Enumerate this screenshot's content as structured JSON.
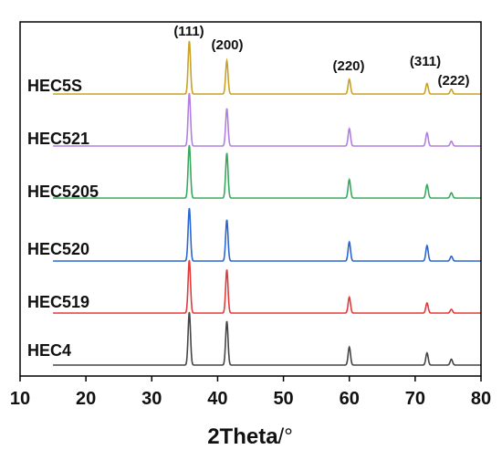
{
  "chart_data": {
    "type": "line",
    "xlabel_main": "2Theta",
    "xlabel_unit": "/°",
    "xlim": [
      10,
      80
    ],
    "ylabel": "",
    "grid": false,
    "legend": "labels above each curve, left side",
    "x_ticks": [
      "10",
      "20",
      "30",
      "40",
      "50",
      "60",
      "70",
      "80"
    ],
    "peaks": [
      {
        "label": "(111)",
        "x": 35.7
      },
      {
        "label": "(200)",
        "x": 41.4
      },
      {
        "label": "(220)",
        "x": 60.0
      },
      {
        "label": "(311)",
        "x": 71.8
      },
      {
        "label": "(222)",
        "x": 75.5
      }
    ],
    "series": [
      {
        "name": "HEC5S",
        "color": "#c9a227",
        "intensities": [
          1.0,
          0.63,
          0.28,
          0.2,
          0.09
        ]
      },
      {
        "name": "HEC521",
        "color": "#b27fe0",
        "intensities": [
          1.0,
          0.71,
          0.33,
          0.25,
          0.09
        ]
      },
      {
        "name": "HEC5205",
        "color": "#3aa85c",
        "intensities": [
          1.0,
          0.85,
          0.35,
          0.25,
          0.1
        ]
      },
      {
        "name": "HEC520",
        "color": "#2a66d1",
        "intensities": [
          1.0,
          0.78,
          0.36,
          0.29,
          0.09
        ]
      },
      {
        "name": "HEC519",
        "color": "#e03b3b",
        "intensities": [
          1.0,
          0.82,
          0.3,
          0.19,
          0.07
        ]
      },
      {
        "name": "HEC4",
        "color": "#454545",
        "intensities": [
          1.0,
          0.83,
          0.34,
          0.23,
          0.11
        ]
      }
    ]
  }
}
